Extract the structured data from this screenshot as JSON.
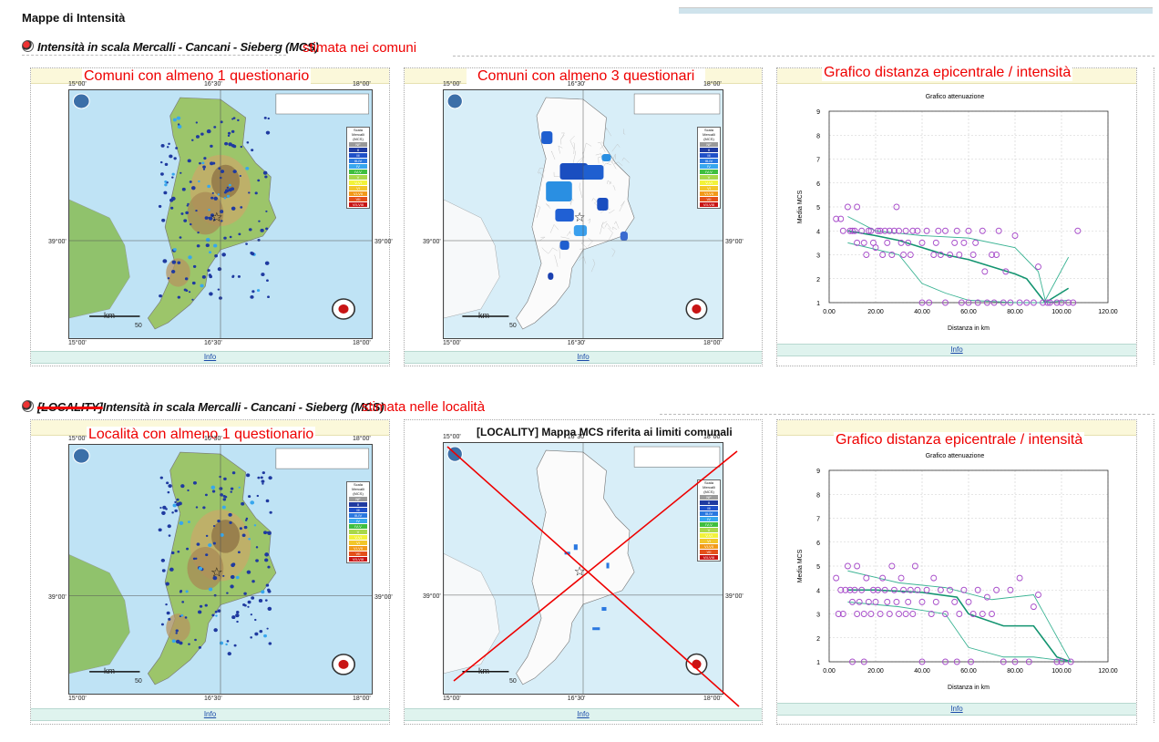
{
  "page": {
    "title": "Mappe di Intensità"
  },
  "sections": [
    {
      "heading": "Intensità in scala Mercalli - Cancani - Sieberg (MCS)",
      "note": "stimata nei comuni",
      "panels": [
        {
          "caption": "Comuni con almeno 1 questionario",
          "info": "Info",
          "type": "map-points"
        },
        {
          "caption": "Comuni con almeno 3 questionari",
          "info": "Info",
          "type": "map-communes"
        },
        {
          "caption": "Grafico distanza epicentrale / intensità",
          "info": "Info",
          "type": "chart"
        }
      ]
    },
    {
      "prefix_struck": "[LOCALITY]",
      "heading": "Intensità in scala Mercalli - Cancani - Sieberg (MCS)",
      "note": "stimata nelle località",
      "panels": [
        {
          "caption": "Località con almeno 1 questionario",
          "info": "Info",
          "type": "map-points"
        },
        {
          "caption": "[LOCALITY] Mappa MCS riferita ai limiti comunali",
          "info": "Info",
          "type": "map-crossed"
        },
        {
          "caption": "Grafico distanza epicentrale / intensità",
          "info": "Info",
          "type": "chart"
        }
      ]
    }
  ],
  "map_labels": {
    "lon": [
      "15°00'",
      "16°30'",
      "18°00'"
    ],
    "lat": "39°00'",
    "scale": "km",
    "scale_tick": "50",
    "legend_title": "Scala Mercalli (MCS)",
    "legend_levels": [
      "NF",
      "II",
      "III",
      "III-IV",
      "IV",
      "IV-V",
      "V",
      "V-VI",
      "VI",
      "VI-VII",
      "VII",
      "VII-VIII"
    ],
    "legend_colors": [
      "#9a9a9a",
      "#1f3aa0",
      "#2050c8",
      "#2a78e0",
      "#37a7ee",
      "#3fbf3f",
      "#a8d84a",
      "#f2f23a",
      "#f2c62a",
      "#f29a1a",
      "#e4501a",
      "#c81414"
    ]
  },
  "chart_data": [
    {
      "type": "scatter",
      "title": "Grafico attenuazione",
      "xlabel": "Distanza in km",
      "ylabel": "Media MCS",
      "xlim": [
        0,
        120
      ],
      "ylim": [
        1,
        9
      ],
      "xticks": [
        "0.00",
        "20.00",
        "40.00",
        "60.00",
        "80.00",
        "100.00",
        "120.00"
      ],
      "yticks": [
        "1",
        "2",
        "3",
        "4",
        "5",
        "6",
        "7",
        "8",
        "9"
      ],
      "points": [
        [
          3,
          4.5
        ],
        [
          5,
          4.5
        ],
        [
          6,
          4
        ],
        [
          8,
          5
        ],
        [
          9,
          4
        ],
        [
          10,
          4
        ],
        [
          11,
          4
        ],
        [
          12,
          5
        ],
        [
          12,
          3.5
        ],
        [
          14,
          4
        ],
        [
          15,
          3.5
        ],
        [
          16,
          3
        ],
        [
          17,
          4
        ],
        [
          18,
          4
        ],
        [
          19,
          3.5
        ],
        [
          20,
          3.3
        ],
        [
          21,
          4
        ],
        [
          22,
          4
        ],
        [
          23,
          3
        ],
        [
          24,
          4
        ],
        [
          25,
          3.5
        ],
        [
          26,
          4
        ],
        [
          27,
          3
        ],
        [
          28,
          4
        ],
        [
          29,
          5
        ],
        [
          30,
          4
        ],
        [
          31,
          3.5
        ],
        [
          32,
          3
        ],
        [
          33,
          4
        ],
        [
          34,
          3.5
        ],
        [
          35,
          3
        ],
        [
          36,
          4
        ],
        [
          38,
          4
        ],
        [
          40,
          3.5
        ],
        [
          40,
          1
        ],
        [
          42,
          4
        ],
        [
          43,
          1
        ],
        [
          45,
          3
        ],
        [
          46,
          3.5
        ],
        [
          47,
          4
        ],
        [
          48,
          3
        ],
        [
          50,
          4
        ],
        [
          50,
          1
        ],
        [
          52,
          3
        ],
        [
          54,
          3.5
        ],
        [
          55,
          4
        ],
        [
          56,
          3
        ],
        [
          57,
          1
        ],
        [
          58,
          3.5
        ],
        [
          60,
          4
        ],
        [
          60,
          1
        ],
        [
          62,
          3
        ],
        [
          63,
          3.5
        ],
        [
          64,
          1
        ],
        [
          66,
          4
        ],
        [
          67,
          2.3
        ],
        [
          68,
          1
        ],
        [
          70,
          3
        ],
        [
          71,
          1
        ],
        [
          72,
          3
        ],
        [
          73,
          4
        ],
        [
          75,
          1
        ],
        [
          76,
          2.3
        ],
        [
          78,
          1
        ],
        [
          80,
          3.8
        ],
        [
          82,
          1
        ],
        [
          85,
          1
        ],
        [
          88,
          1
        ],
        [
          90,
          2.5
        ],
        [
          92,
          1
        ],
        [
          94,
          1
        ],
        [
          95,
          1
        ],
        [
          98,
          1
        ],
        [
          100,
          1
        ],
        [
          103,
          1
        ],
        [
          105,
          1
        ],
        [
          107,
          4
        ]
      ],
      "series": [
        {
          "values": [
            [
              8,
              4
            ],
            [
              20,
              3.8
            ],
            [
              30,
              3.6
            ],
            [
              40,
              3.3
            ],
            [
              50,
              3
            ],
            [
              60,
              2.8
            ],
            [
              70,
              2.5
            ],
            [
              80,
              2.2
            ],
            [
              85,
              2
            ],
            [
              93,
              1
            ],
            [
              103,
              1.6
            ]
          ]
        },
        {
          "values": [
            [
              8,
              4.6
            ],
            [
              20,
              4
            ],
            [
              40,
              3.8
            ],
            [
              60,
              3.7
            ],
            [
              80,
              3.3
            ],
            [
              90,
              2.3
            ],
            [
              93,
              1.1
            ],
            [
              103,
              2.9
            ]
          ]
        },
        {
          "values": [
            [
              8,
              3.5
            ],
            [
              30,
              3
            ],
            [
              40,
              1.8
            ],
            [
              50,
              1.4
            ],
            [
              60,
              1.1
            ],
            [
              80,
              1
            ],
            [
              93,
              1
            ],
            [
              103,
              1.1
            ]
          ]
        }
      ]
    },
    {
      "type": "scatter",
      "title": "Grafico attenuazione",
      "xlabel": "Distanza in km",
      "ylabel": "Media MCS",
      "xlim": [
        0,
        120
      ],
      "ylim": [
        1,
        9
      ],
      "xticks": [
        "0.00",
        "20.00",
        "40.00",
        "60.00",
        "80.00",
        "100.00",
        "120.00"
      ],
      "yticks": [
        "1",
        "2",
        "3",
        "4",
        "5",
        "6",
        "7",
        "8",
        "9"
      ],
      "points": [
        [
          3,
          4.5
        ],
        [
          4,
          3
        ],
        [
          5,
          4
        ],
        [
          6,
          3
        ],
        [
          7,
          4
        ],
        [
          8,
          5
        ],
        [
          9,
          4
        ],
        [
          10,
          1
        ],
        [
          10,
          3.5
        ],
        [
          11,
          4
        ],
        [
          12,
          5
        ],
        [
          12,
          3
        ],
        [
          13,
          3.5
        ],
        [
          14,
          4
        ],
        [
          15,
          3
        ],
        [
          15,
          1
        ],
        [
          16,
          4.5
        ],
        [
          17,
          3.5
        ],
        [
          18,
          3
        ],
        [
          19,
          4
        ],
        [
          20,
          3.5
        ],
        [
          21,
          4
        ],
        [
          22,
          3
        ],
        [
          23,
          4.5
        ],
        [
          24,
          4
        ],
        [
          25,
          3.5
        ],
        [
          26,
          3
        ],
        [
          27,
          5
        ],
        [
          28,
          4
        ],
        [
          29,
          3.5
        ],
        [
          30,
          3
        ],
        [
          31,
          4.5
        ],
        [
          32,
          4
        ],
        [
          33,
          3
        ],
        [
          34,
          3.5
        ],
        [
          35,
          4
        ],
        [
          36,
          3
        ],
        [
          37,
          5
        ],
        [
          38,
          4
        ],
        [
          40,
          3.5
        ],
        [
          40,
          1
        ],
        [
          42,
          4
        ],
        [
          44,
          3
        ],
        [
          45,
          4.5
        ],
        [
          46,
          3.5
        ],
        [
          48,
          4
        ],
        [
          50,
          3
        ],
        [
          50,
          1
        ],
        [
          52,
          4
        ],
        [
          54,
          3.5
        ],
        [
          55,
          1
        ],
        [
          56,
          3
        ],
        [
          58,
          4
        ],
        [
          60,
          3.5
        ],
        [
          61,
          1
        ],
        [
          62,
          3
        ],
        [
          64,
          4
        ],
        [
          66,
          3
        ],
        [
          68,
          3.7
        ],
        [
          70,
          3
        ],
        [
          72,
          4
        ],
        [
          75,
          1
        ],
        [
          78,
          4
        ],
        [
          80,
          1
        ],
        [
          82,
          4.5
        ],
        [
          86,
          1
        ],
        [
          88,
          3.3
        ],
        [
          90,
          3.8
        ],
        [
          98,
          1
        ],
        [
          100,
          1
        ],
        [
          104,
          1
        ]
      ],
      "series": [
        {
          "values": [
            [
              8,
              4
            ],
            [
              20,
              4
            ],
            [
              40,
              3.9
            ],
            [
              55,
              3.7
            ],
            [
              60,
              3
            ],
            [
              75,
              2.5
            ],
            [
              88,
              2.5
            ],
            [
              98,
              1.2
            ],
            [
              104,
              1
            ]
          ]
        },
        {
          "values": [
            [
              8,
              4.8
            ],
            [
              30,
              4.3
            ],
            [
              50,
              4.1
            ],
            [
              70,
              3.6
            ],
            [
              88,
              3.8
            ],
            [
              104,
              1
            ]
          ]
        },
        {
          "values": [
            [
              8,
              3.5
            ],
            [
              30,
              3.3
            ],
            [
              50,
              3
            ],
            [
              60,
              1.6
            ],
            [
              75,
              1.2
            ],
            [
              88,
              1.2
            ],
            [
              104,
              1
            ]
          ]
        }
      ]
    }
  ]
}
